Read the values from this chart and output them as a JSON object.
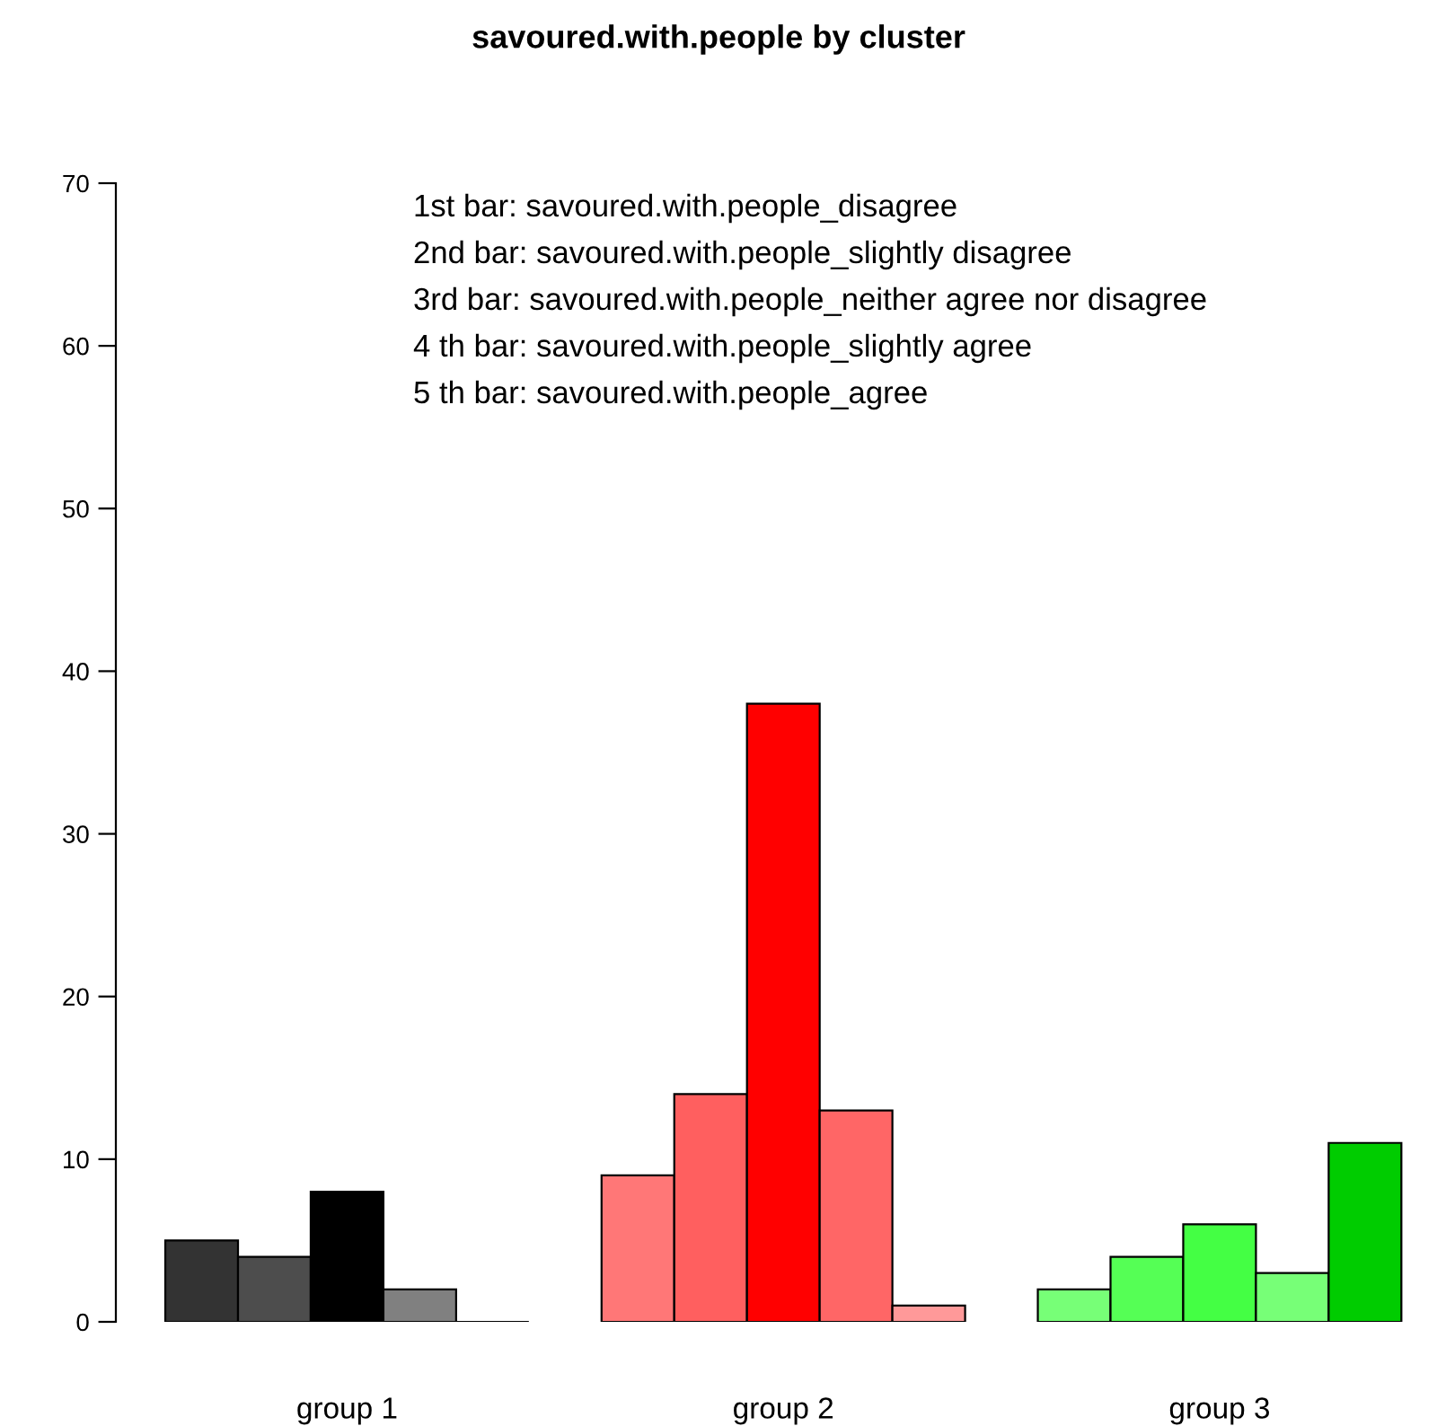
{
  "chart_data": {
    "type": "bar",
    "title": "savoured.with.people by cluster",
    "categories": [
      "group 1",
      "group 2",
      "group 3"
    ],
    "series": [
      {
        "values": [
          5,
          9,
          2
        ],
        "colors": [
          "#333333",
          "#ff7777",
          "#77ff77"
        ]
      },
      {
        "values": [
          4,
          14,
          4
        ],
        "colors": [
          "#4d4d4d",
          "#ff5f5f",
          "#55ff55"
        ]
      },
      {
        "values": [
          8,
          38,
          6
        ],
        "colors": [
          "#000000",
          "#ff0000",
          "#44ff44"
        ]
      },
      {
        "values": [
          2,
          13,
          3
        ],
        "colors": [
          "#808080",
          "#ff6666",
          "#77ff77"
        ]
      },
      {
        "values": [
          0,
          1,
          11
        ],
        "colors": [
          "#000000",
          "#ff9999",
          "#00cc00"
        ]
      }
    ],
    "ylim": [
      0,
      70
    ],
    "yticks": [
      0,
      10,
      20,
      30,
      40,
      50,
      60,
      70
    ],
    "grid": false,
    "legend": false,
    "annotations": [
      "1st bar: savoured.with.people_disagree",
      "2nd bar: savoured.with.people_slightly disagree",
      "3rd bar: savoured.with.people_neither agree nor disagree",
      "4 th bar: savoured.with.people_slightly agree",
      "5 th bar: savoured.with.people_agree"
    ]
  }
}
